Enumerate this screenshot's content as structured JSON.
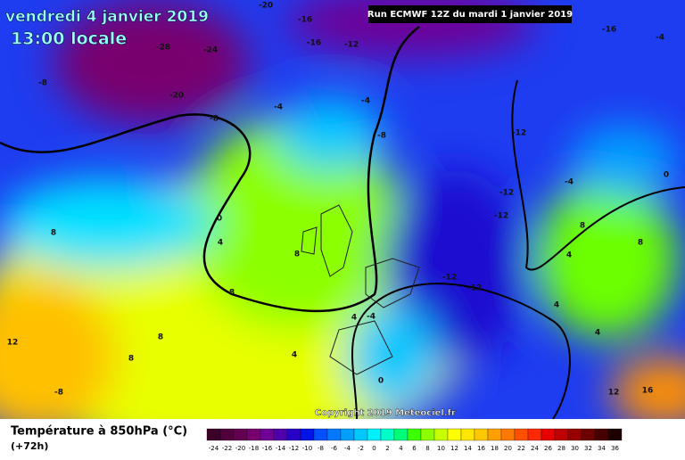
{
  "map": {
    "date": "vendredi 4 janvier 2019",
    "time": "13:00 locale",
    "run": "Run ECMWF 12Z du mardi 1 janvier 2019",
    "copyright": "Copyright 2019 Meteociel.fr",
    "legend": {
      "title": "Température à 850hPa (°C)",
      "subtitle": "(+72h)",
      "ticks": [
        -24,
        -22,
        -20,
        -18,
        -16,
        -14,
        -12,
        -10,
        -8,
        -6,
        -4,
        -2,
        0,
        2,
        4,
        6,
        8,
        10,
        12,
        14,
        16,
        18,
        20,
        22,
        24,
        26,
        28,
        30,
        32,
        34,
        36
      ],
      "colors": [
        "#3c0028",
        "#50003c",
        "#640050",
        "#78006e",
        "#6e0096",
        "#5000aa",
        "#2800c8",
        "#0014e6",
        "#0050ff",
        "#0078ff",
        "#00a0ff",
        "#00c8ff",
        "#00f0ff",
        "#00ffc8",
        "#00ff78",
        "#3cff00",
        "#8cff00",
        "#c8ff00",
        "#ffff00",
        "#ffe600",
        "#ffc800",
        "#ffa000",
        "#ff7800",
        "#ff5000",
        "#ff2800",
        "#e60000",
        "#be0000",
        "#960000",
        "#6e0000",
        "#460000",
        "#1e0000"
      ]
    },
    "contour_labels": [
      -20,
      -16,
      -16,
      -12,
      -28,
      -24,
      -8,
      -20,
      -8,
      -4,
      -4,
      -8,
      -12,
      -16,
      -4,
      -12,
      -12,
      -4,
      0,
      0,
      4,
      8,
      8,
      8,
      -12,
      -12,
      12,
      8,
      4,
      8,
      -8,
      0,
      12,
      16,
      8,
      8,
      4,
      4,
      4,
      -4,
      4
    ]
  }
}
